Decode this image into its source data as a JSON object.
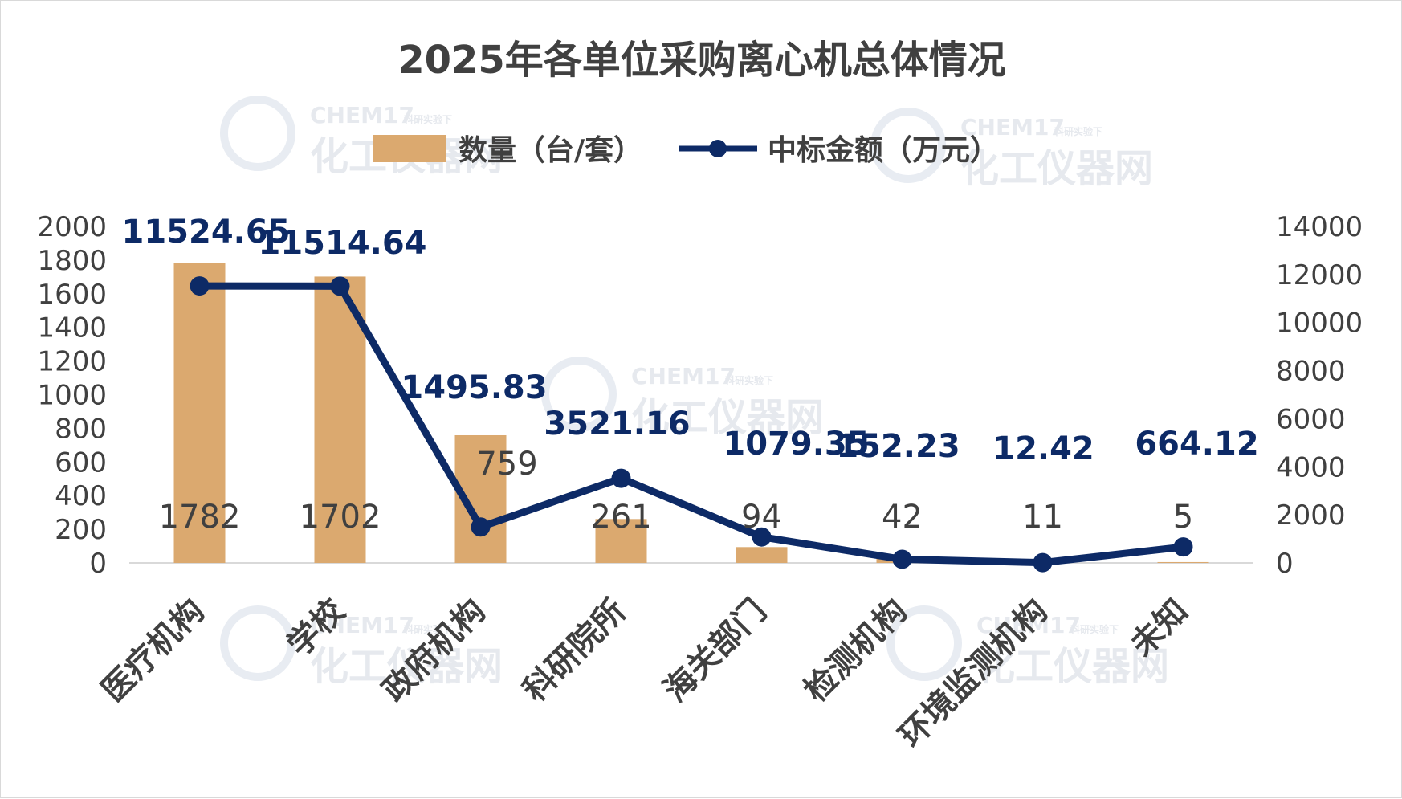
{
  "watermark": {
    "brand": "CHEM17",
    "slogan": "科研实验下",
    "name": "化工仪器网"
  },
  "chart_data": {
    "type": "bar",
    "title": "2025年各单位采购离心机总体情况",
    "categories": [
      "医疗机构",
      "学校",
      "政府机构",
      "科研院所",
      "海关部门",
      "检测机构",
      "环境监测机构",
      "未知"
    ],
    "series": [
      {
        "name": "数量（台/套）",
        "type": "bar",
        "axis": "left",
        "color": "#dba96f",
        "values": [
          1782,
          1702,
          759,
          261,
          94,
          42,
          11,
          5
        ],
        "labels": [
          "1782",
          "1702",
          "759",
          "261",
          "94",
          "42",
          "11",
          "5"
        ]
      },
      {
        "name": "中标金额（万元）",
        "type": "line",
        "axis": "right",
        "color": "#0d2a66",
        "values": [
          11524.65,
          11514.64,
          1495.83,
          3521.16,
          1079.35,
          152.23,
          12.42,
          664.12
        ],
        "labels": [
          "11524.65",
          "11514.64",
          "1495.83",
          "3521.16",
          "1079.35",
          "152.23",
          "12.42",
          "664.12"
        ]
      }
    ],
    "y_left": {
      "min": 0,
      "max": 2000,
      "ticks": [
        "0",
        "200",
        "400",
        "600",
        "800",
        "1000",
        "1200",
        "1400",
        "1600",
        "1800",
        "2000"
      ]
    },
    "y_right": {
      "min": 0,
      "max": 14000,
      "ticks": [
        "0",
        "2000",
        "4000",
        "6000",
        "8000",
        "10000",
        "12000",
        "14000"
      ]
    },
    "grid": false,
    "legend_position": "top"
  }
}
